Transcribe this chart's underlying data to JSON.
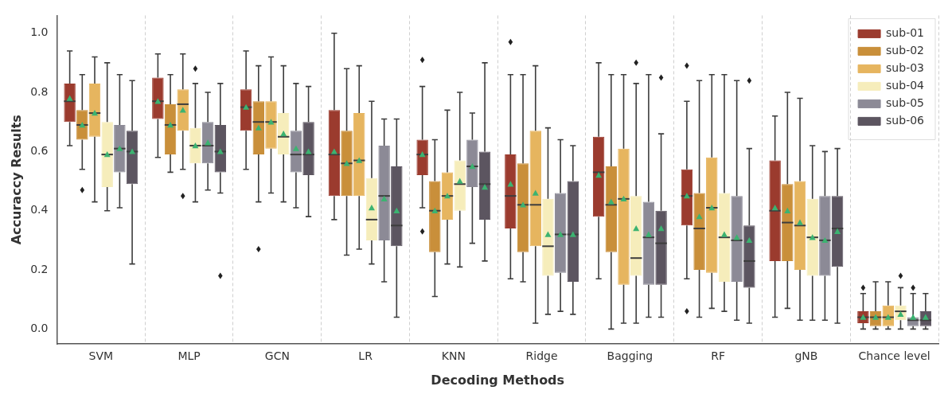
{
  "chart_data": {
    "type": "box",
    "xlabel": "Decoding Methods",
    "ylabel": "Accuraccy Results",
    "categories": [
      "SVM",
      "MLP",
      "GCN",
      "LR",
      "KNN",
      "Ridge",
      "Bagging",
      "RF",
      "gNB",
      "Chance level"
    ],
    "ylim": [
      -0.05,
      1.06
    ],
    "yticks": [
      {
        "value": 0,
        "label": "0.0"
      },
      {
        "value": 0.2,
        "label": "0.2"
      },
      {
        "value": 0.4,
        "label": "0.4"
      },
      {
        "value": 0.6,
        "label": "0.6"
      },
      {
        "value": 0.8,
        "label": "0.8"
      },
      {
        "value": 1,
        "label": "1.0"
      }
    ],
    "grid": "x",
    "legend": "top right",
    "marker": "triangle",
    "series": [
      {
        "name": "sub-01",
        "color": "#9b3b2e",
        "boxes": [
          {
            "low": 0.62,
            "q1": 0.7,
            "median": 0.77,
            "q3": 0.83,
            "high": 0.94,
            "mean": 0.78
          },
          {
            "low": 0.58,
            "q1": 0.71,
            "median": 0.77,
            "q3": 0.85,
            "high": 0.93,
            "mean": 0.77
          },
          {
            "low": 0.54,
            "q1": 0.67,
            "median": 0.75,
            "q3": 0.81,
            "high": 0.94,
            "mean": 0.75
          },
          {
            "low": 0.37,
            "q1": 0.45,
            "median": 0.59,
            "q3": 0.74,
            "high": 1.0,
            "mean": 0.6
          },
          {
            "low": 0.41,
            "q1": 0.52,
            "median": 0.59,
            "q3": 0.64,
            "high": 0.82,
            "mean": 0.59,
            "outliers": [
              0.91,
              0.33
            ]
          },
          {
            "low": 0.17,
            "q1": 0.34,
            "median": 0.45,
            "q3": 0.59,
            "high": 0.86,
            "mean": 0.49,
            "outliers": [
              0.97
            ]
          },
          {
            "low": 0.17,
            "q1": 0.38,
            "median": 0.53,
            "q3": 0.65,
            "high": 0.9,
            "mean": 0.52
          },
          {
            "low": 0.17,
            "q1": 0.35,
            "median": 0.45,
            "q3": 0.54,
            "high": 0.77,
            "mean": 0.45,
            "outliers": [
              0.89,
              0.06
            ]
          },
          {
            "low": 0.04,
            "q1": 0.23,
            "median": 0.4,
            "q3": 0.57,
            "high": 0.72,
            "mean": 0.41
          },
          {
            "low": 0,
            "q1": 0.02,
            "median": 0.04,
            "q3": 0.06,
            "high": 0.12,
            "mean": 0.04,
            "outliers": [
              0.14
            ]
          }
        ]
      },
      {
        "name": "sub-02",
        "color": "#c98f3a",
        "boxes": [
          {
            "low": 0.54,
            "q1": 0.64,
            "median": 0.69,
            "q3": 0.74,
            "high": 0.86,
            "mean": 0.69,
            "outliers": [
              0.47
            ]
          },
          {
            "low": 0.53,
            "q1": 0.59,
            "median": 0.69,
            "q3": 0.76,
            "high": 0.86,
            "mean": 0.69
          },
          {
            "low": 0.43,
            "q1": 0.59,
            "median": 0.7,
            "q3": 0.77,
            "high": 0.89,
            "mean": 0.68,
            "outliers": [
              0.27
            ]
          },
          {
            "low": 0.25,
            "q1": 0.45,
            "median": 0.56,
            "q3": 0.67,
            "high": 0.88,
            "mean": 0.56
          },
          {
            "low": 0.11,
            "q1": 0.26,
            "median": 0.4,
            "q3": 0.5,
            "high": 0.64,
            "mean": 0.4
          },
          {
            "low": 0.16,
            "q1": 0.26,
            "median": 0.42,
            "q3": 0.56,
            "high": 0.86,
            "mean": 0.42
          },
          {
            "low": 0.0,
            "q1": 0.26,
            "median": 0.42,
            "q3": 0.55,
            "high": 0.86,
            "mean": 0.43
          },
          {
            "low": 0.04,
            "q1": 0.2,
            "median": 0.34,
            "q3": 0.46,
            "high": 0.84,
            "mean": 0.38
          },
          {
            "low": 0.07,
            "q1": 0.23,
            "median": 0.36,
            "q3": 0.49,
            "high": 0.8,
            "mean": 0.4
          },
          {
            "low": 0,
            "q1": 0.01,
            "median": 0.04,
            "q3": 0.06,
            "high": 0.16,
            "mean": 0.04
          }
        ]
      },
      {
        "name": "sub-03",
        "color": "#e6b55f",
        "boxes": [
          {
            "low": 0.43,
            "q1": 0.65,
            "median": 0.73,
            "q3": 0.83,
            "high": 0.92,
            "mean": 0.73
          },
          {
            "low": 0.54,
            "q1": 0.67,
            "median": 0.76,
            "q3": 0.81,
            "high": 0.93,
            "mean": 0.74,
            "outliers": [
              0.45
            ]
          },
          {
            "low": 0.46,
            "q1": 0.61,
            "median": 0.7,
            "q3": 0.77,
            "high": 0.92,
            "mean": 0.7
          },
          {
            "low": 0.27,
            "q1": 0.45,
            "median": 0.57,
            "q3": 0.73,
            "high": 0.89,
            "mean": 0.57
          },
          {
            "low": 0.22,
            "q1": 0.37,
            "median": 0.45,
            "q3": 0.53,
            "high": 0.74,
            "mean": 0.45
          },
          {
            "low": 0.02,
            "q1": 0.28,
            "median": 0.42,
            "q3": 0.67,
            "high": 0.89,
            "mean": 0.46
          },
          {
            "low": 0.02,
            "q1": 0.15,
            "median": 0.44,
            "q3": 0.61,
            "high": 0.86,
            "mean": 0.44
          },
          {
            "low": 0.07,
            "q1": 0.19,
            "median": 0.41,
            "q3": 0.58,
            "high": 0.86,
            "mean": 0.41
          },
          {
            "low": 0.03,
            "q1": 0.2,
            "median": 0.35,
            "q3": 0.5,
            "high": 0.78,
            "mean": 0.36
          },
          {
            "low": 0,
            "q1": 0.01,
            "median": 0.04,
            "q3": 0.08,
            "high": 0.16,
            "mean": 0.04
          }
        ]
      },
      {
        "name": "sub-04",
        "color": "#f6edbb",
        "boxes": [
          {
            "low": 0.4,
            "q1": 0.48,
            "median": 0.59,
            "q3": 0.7,
            "high": 0.9,
            "mean": 0.59
          },
          {
            "low": 0.43,
            "q1": 0.56,
            "median": 0.62,
            "q3": 0.68,
            "high": 0.83,
            "mean": 0.62,
            "outliers": [
              0.88
            ]
          },
          {
            "low": 0.43,
            "q1": 0.59,
            "median": 0.65,
            "q3": 0.73,
            "high": 0.89,
            "mean": 0.66
          },
          {
            "low": 0.22,
            "q1": 0.3,
            "median": 0.37,
            "q3": 0.51,
            "high": 0.77,
            "mean": 0.41
          },
          {
            "low": 0.21,
            "q1": 0.4,
            "median": 0.49,
            "q3": 0.57,
            "high": 0.8,
            "mean": 0.5
          },
          {
            "low": 0.05,
            "q1": 0.18,
            "median": 0.28,
            "q3": 0.44,
            "high": 0.68,
            "mean": 0.32
          },
          {
            "low": 0.02,
            "q1": 0.18,
            "median": 0.24,
            "q3": 0.45,
            "high": 0.83,
            "mean": 0.34,
            "outliers": [
              0.9
            ]
          },
          {
            "low": 0.06,
            "q1": 0.16,
            "median": 0.31,
            "q3": 0.46,
            "high": 0.86,
            "mean": 0.32
          },
          {
            "low": 0.03,
            "q1": 0.18,
            "median": 0.31,
            "q3": 0.44,
            "high": 0.62,
            "mean": 0.31
          },
          {
            "low": 0,
            "q1": 0.03,
            "median": 0.06,
            "q3": 0.08,
            "high": 0.14,
            "mean": 0.05,
            "outliers": [
              0.18
            ]
          }
        ]
      },
      {
        "name": "sub-05",
        "color": "#8c8a96",
        "boxes": [
          {
            "low": 0.41,
            "q1": 0.53,
            "median": 0.61,
            "q3": 0.69,
            "high": 0.86,
            "mean": 0.61
          },
          {
            "low": 0.47,
            "q1": 0.56,
            "median": 0.62,
            "q3": 0.7,
            "high": 0.8,
            "mean": 0.63
          },
          {
            "low": 0.41,
            "q1": 0.53,
            "median": 0.59,
            "q3": 0.67,
            "high": 0.83,
            "mean": 0.61
          },
          {
            "low": 0.16,
            "q1": 0.3,
            "median": 0.45,
            "q3": 0.62,
            "high": 0.71,
            "mean": 0.44
          },
          {
            "low": 0.29,
            "q1": 0.48,
            "median": 0.55,
            "q3": 0.64,
            "high": 0.73,
            "mean": 0.55
          },
          {
            "low": 0.06,
            "q1": 0.19,
            "median": 0.32,
            "q3": 0.46,
            "high": 0.64,
            "mean": 0.32
          },
          {
            "low": 0.04,
            "q1": 0.15,
            "median": 0.31,
            "q3": 0.43,
            "high": 0.86,
            "mean": 0.32
          },
          {
            "low": 0.03,
            "q1": 0.16,
            "median": 0.3,
            "q3": 0.45,
            "high": 0.84,
            "mean": 0.31
          },
          {
            "low": 0.03,
            "q1": 0.18,
            "median": 0.3,
            "q3": 0.45,
            "high": 0.6,
            "mean": 0.3
          },
          {
            "low": 0,
            "q1": 0.01,
            "median": 0.03,
            "q3": 0.04,
            "high": 0.12,
            "mean": 0.04,
            "outliers": [
              0.14
            ]
          }
        ]
      },
      {
        "name": "sub-06",
        "color": "#5c5560",
        "boxes": [
          {
            "low": 0.22,
            "q1": 0.49,
            "median": 0.6,
            "q3": 0.67,
            "high": 0.84,
            "mean": 0.6
          },
          {
            "low": 0.46,
            "q1": 0.53,
            "median": 0.6,
            "q3": 0.69,
            "high": 0.83,
            "mean": 0.6,
            "outliers": [
              0.18
            ]
          },
          {
            "low": 0.38,
            "q1": 0.52,
            "median": 0.59,
            "q3": 0.7,
            "high": 0.82,
            "mean": 0.6
          },
          {
            "low": 0.04,
            "q1": 0.28,
            "median": 0.35,
            "q3": 0.55,
            "high": 0.71,
            "mean": 0.4
          },
          {
            "low": 0.23,
            "q1": 0.37,
            "median": 0.49,
            "q3": 0.6,
            "high": 0.9,
            "mean": 0.48
          },
          {
            "low": 0.05,
            "q1": 0.16,
            "median": 0.32,
            "q3": 0.5,
            "high": 0.62,
            "mean": 0.32
          },
          {
            "low": 0.04,
            "q1": 0.15,
            "median": 0.29,
            "q3": 0.4,
            "high": 0.66,
            "mean": 0.34,
            "outliers": [
              0.85
            ]
          },
          {
            "low": 0.02,
            "q1": 0.14,
            "median": 0.23,
            "q3": 0.35,
            "high": 0.61,
            "mean": 0.3,
            "outliers": [
              0.84
            ]
          },
          {
            "low": 0.02,
            "q1": 0.21,
            "median": 0.34,
            "q3": 0.45,
            "high": 0.61,
            "mean": 0.33
          },
          {
            "low": 0,
            "q1": 0.01,
            "median": 0.03,
            "q3": 0.06,
            "high": 0.12,
            "mean": 0.04
          }
        ]
      }
    ]
  }
}
